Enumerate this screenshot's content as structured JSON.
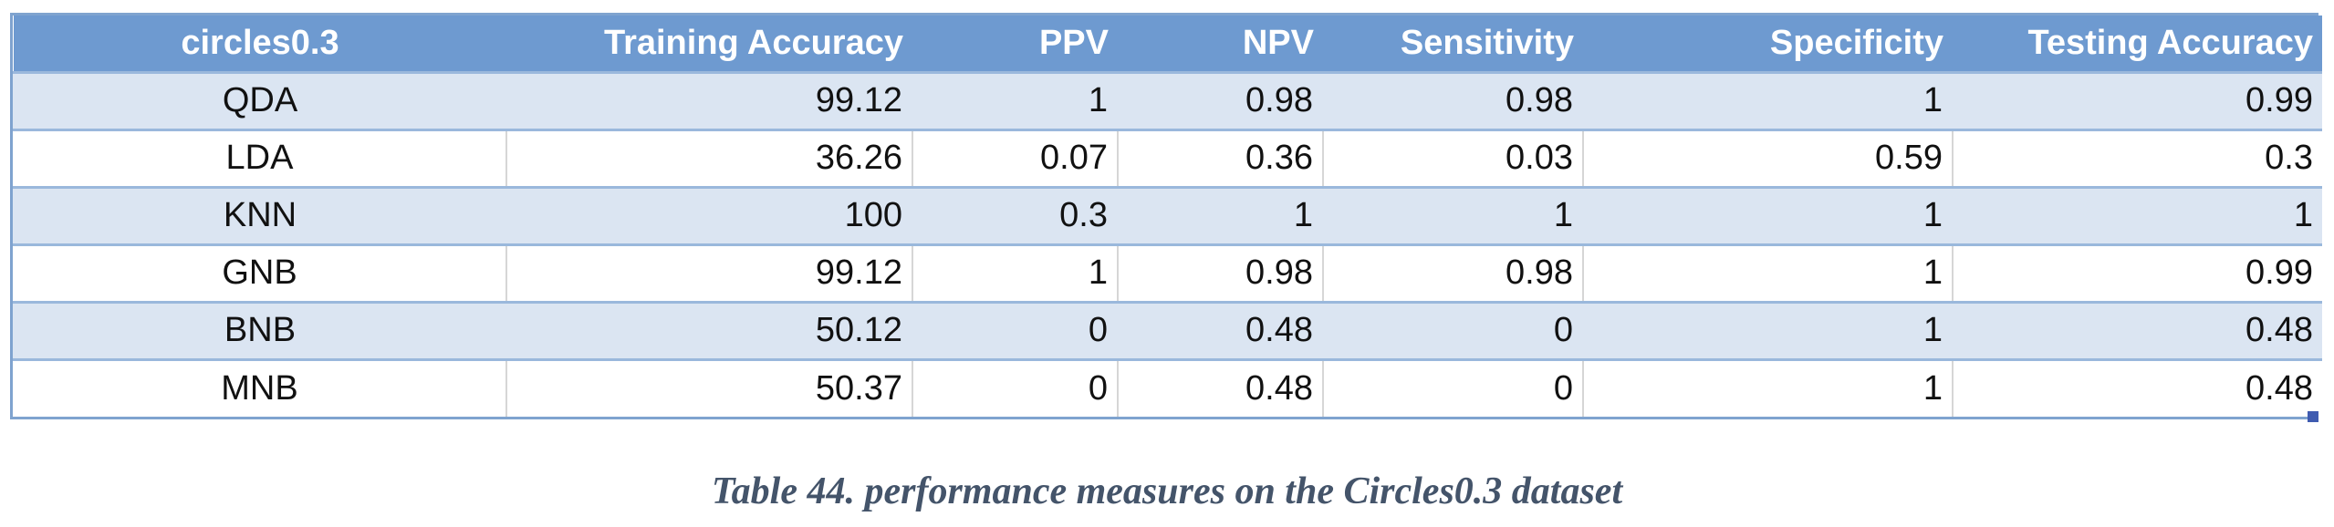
{
  "table": {
    "headers": [
      "circles0.3",
      "Training Accuracy",
      "PPV",
      "NPV",
      "Sensitivity",
      "Specificity",
      "Testing Accuracy"
    ],
    "rows": [
      [
        "QDA",
        "99.12",
        "1",
        "0.98",
        "0.98",
        "1",
        "0.99"
      ],
      [
        "LDA",
        "36.26",
        "0.07",
        "0.36",
        "0.03",
        "0.59",
        "0.3"
      ],
      [
        "KNN",
        "100",
        "0.3",
        "1",
        "1",
        "1",
        "1"
      ],
      [
        "GNB",
        "99.12",
        "1",
        "0.98",
        "0.98",
        "1",
        "0.99"
      ],
      [
        "BNB",
        "50.12",
        "0",
        "0.48",
        "0",
        "1",
        "0.48"
      ],
      [
        "MNB",
        "50.37",
        "0",
        "0.48",
        "0",
        "1",
        "0.48"
      ]
    ]
  },
  "caption": "Table 44. performance measures on the Circles0.3 dataset",
  "colors": {
    "header_bg": "#6e9ad0",
    "band_bg": "#dbe5f2",
    "caption_text": "#44546a"
  }
}
